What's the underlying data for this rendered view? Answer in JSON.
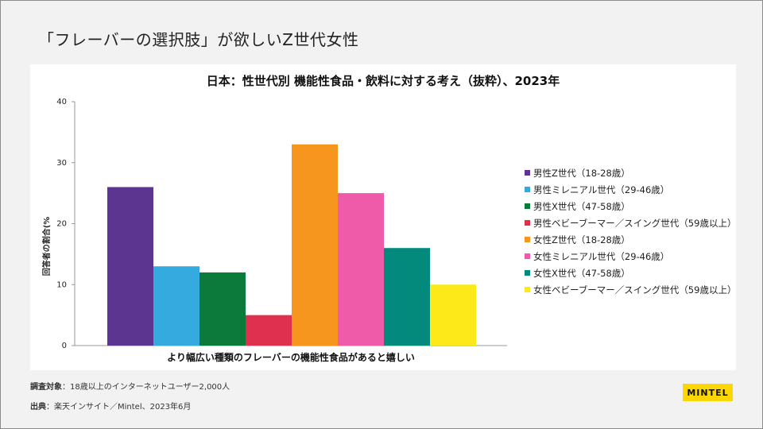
{
  "slide_title": "「フレーバーの選択肢」が欲しいZ世代女性",
  "chart_data": {
    "type": "bar",
    "title": "日本：性世代別 機能性食品・飲料に対する考え（抜粋）、2023年",
    "xlabel": "より幅広い種類のフレーバーの機能性食品があると嬉しい",
    "ylabel": "回答者の割合(%",
    "ylim": [
      0,
      40
    ],
    "yticks": [
      0,
      10,
      20,
      30,
      40
    ],
    "categories": [
      "より幅広い種類のフレーバーの機能性食品があると嬉しい"
    ],
    "grid": false,
    "legend_position": "right",
    "series": [
      {
        "name": "男性Z世代（18-28歳）",
        "values": [
          26
        ],
        "color": "#5c3591"
      },
      {
        "name": "男性ミレニアル世代（29-46歳）",
        "values": [
          13
        ],
        "color": "#34aadf"
      },
      {
        "name": "男性X世代（47-58歳）",
        "values": [
          12
        ],
        "color": "#0b7a3a"
      },
      {
        "name": "男性ベビーブーマー／スイング世代（59歳以上）",
        "values": [
          5
        ],
        "color": "#e0304f"
      },
      {
        "name": "女性Z世代（18-28歳）",
        "values": [
          33
        ],
        "color": "#f7961e"
      },
      {
        "name": "女性ミレニアル世代（29-46歳）",
        "values": [
          25
        ],
        "color": "#ef5aa9"
      },
      {
        "name": "女性X世代（47-58歳）",
        "values": [
          16
        ],
        "color": "#038a7c"
      },
      {
        "name": "女性ベビーブーマー／スイング世代（59歳以上）",
        "values": [
          10
        ],
        "color": "#fde81a"
      }
    ]
  },
  "notes": {
    "target_label": "調査対象",
    "target_text": "：18歳以上のインターネットユーザー2,000人",
    "source_label": "出典",
    "source_text": "：楽天インサイト／Mintel、2023年6月"
  },
  "logo": "MINTEL"
}
